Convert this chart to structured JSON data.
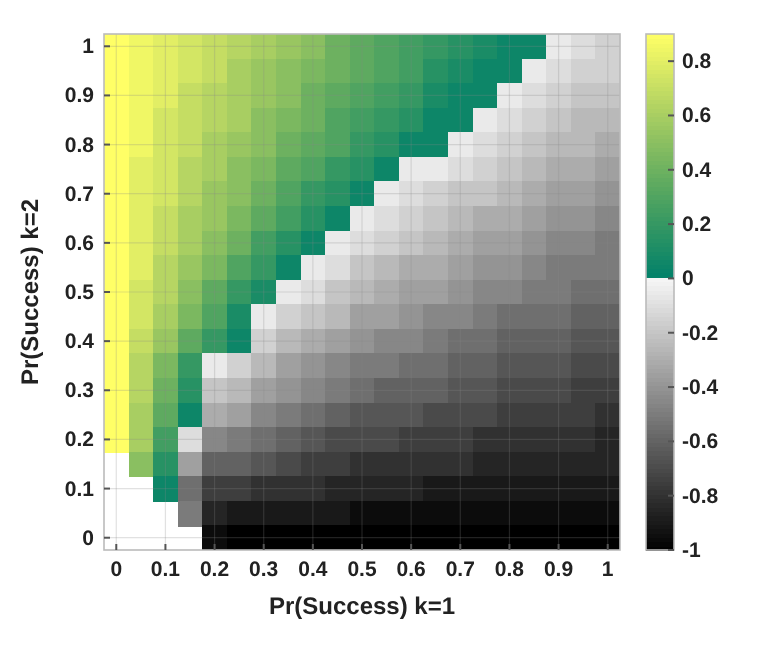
{
  "chart_data": {
    "type": "heatmap",
    "xlabel": "Pr(Success) k=1",
    "ylabel": "Pr(Success) k=2",
    "categories": [
      "0",
      null,
      "0.1",
      null,
      "0.2",
      null,
      "0.3",
      null,
      "0.4",
      null,
      "0.5",
      null,
      "0.6",
      null,
      "0.7",
      null,
      "0.8",
      null,
      "0.9",
      null,
      "1"
    ],
    "y_categories": [
      "1",
      null,
      "0.9",
      null,
      "0.8",
      null,
      "0.7",
      null,
      "0.6",
      null,
      "0.5",
      null,
      "0.4",
      null,
      "0.3",
      null,
      "0.2",
      null,
      "0.1",
      null,
      "0"
    ],
    "grid": true,
    "clim": [
      -1,
      0.9
    ],
    "cticks": [
      -1,
      -0.8,
      -0.6,
      -0.4,
      -0.2,
      0,
      0.2,
      0.4,
      0.6,
      0.8
    ],
    "cells": [
      [
        0.9,
        0.85,
        0.8,
        0.75,
        0.7,
        0.65,
        0.6,
        0.55,
        0.5,
        0.4,
        0.35,
        0.3,
        0.25,
        0.2,
        0.15,
        0.1,
        0.05,
        0.05,
        -0.05,
        -0.1,
        -0.15
      ],
      [
        0.9,
        0.85,
        0.8,
        0.75,
        0.7,
        0.6,
        0.55,
        0.5,
        0.45,
        0.4,
        0.35,
        0.3,
        0.25,
        0.15,
        0.1,
        0.05,
        0.05,
        -0.05,
        -0.1,
        -0.15,
        -0.15
      ],
      [
        0.9,
        0.85,
        0.8,
        0.7,
        0.65,
        0.6,
        0.55,
        0.5,
        0.4,
        0.35,
        0.3,
        0.25,
        0.2,
        0.1,
        0.05,
        0.05,
        -0.05,
        -0.1,
        -0.15,
        -0.2,
        -0.2
      ],
      [
        0.9,
        0.85,
        0.75,
        0.7,
        0.65,
        0.6,
        0.5,
        0.45,
        0.4,
        0.3,
        0.25,
        0.2,
        0.15,
        0.05,
        0.05,
        -0.05,
        -0.1,
        -0.15,
        -0.2,
        -0.25,
        -0.25
      ],
      [
        0.9,
        0.85,
        0.75,
        0.7,
        0.6,
        0.55,
        0.5,
        0.4,
        0.35,
        0.3,
        0.2,
        0.15,
        0.05,
        0.05,
        -0.05,
        -0.1,
        -0.15,
        -0.2,
        -0.25,
        -0.25,
        -0.3
      ],
      [
        0.9,
        0.8,
        0.75,
        0.65,
        0.6,
        0.5,
        0.45,
        0.35,
        0.3,
        0.2,
        0.15,
        0.05,
        -0.05,
        -0.05,
        -0.1,
        -0.15,
        -0.2,
        -0.25,
        -0.3,
        -0.3,
        -0.35
      ],
      [
        0.9,
        0.8,
        0.75,
        0.65,
        0.55,
        0.5,
        0.4,
        0.3,
        0.2,
        0.15,
        0.05,
        -0.05,
        -0.1,
        -0.15,
        -0.2,
        -0.2,
        -0.25,
        -0.3,
        -0.35,
        -0.35,
        -0.4
      ],
      [
        0.9,
        0.8,
        0.7,
        0.6,
        0.55,
        0.45,
        0.35,
        0.25,
        0.15,
        0.05,
        -0.05,
        -0.1,
        -0.15,
        -0.2,
        -0.25,
        -0.3,
        -0.3,
        -0.35,
        -0.4,
        -0.4,
        -0.45
      ],
      [
        0.9,
        0.8,
        0.7,
        0.6,
        0.5,
        0.4,
        0.25,
        0.15,
        0.05,
        -0.05,
        -0.1,
        -0.15,
        -0.2,
        -0.25,
        -0.3,
        -0.35,
        -0.35,
        -0.4,
        -0.45,
        -0.45,
        -0.5
      ],
      [
        0.9,
        0.8,
        0.65,
        0.55,
        0.45,
        0.3,
        0.2,
        0.05,
        -0.05,
        -0.1,
        -0.2,
        -0.25,
        -0.3,
        -0.3,
        -0.35,
        -0.4,
        -0.4,
        -0.45,
        -0.5,
        -0.5,
        -0.5
      ],
      [
        0.9,
        0.75,
        0.65,
        0.5,
        0.35,
        0.2,
        0.1,
        -0.05,
        -0.1,
        -0.2,
        -0.25,
        -0.3,
        -0.35,
        -0.35,
        -0.4,
        -0.45,
        -0.45,
        -0.5,
        -0.5,
        -0.55,
        -0.55
      ],
      [
        0.9,
        0.75,
        0.6,
        0.45,
        0.3,
        0.1,
        -0.05,
        -0.15,
        -0.2,
        -0.25,
        -0.35,
        -0.35,
        -0.4,
        -0.45,
        -0.45,
        -0.5,
        -0.55,
        -0.55,
        -0.55,
        -0.6,
        -0.6
      ],
      [
        0.9,
        0.7,
        0.55,
        0.35,
        0.2,
        0.05,
        -0.15,
        -0.25,
        -0.3,
        -0.35,
        -0.4,
        -0.45,
        -0.45,
        -0.5,
        -0.55,
        -0.55,
        -0.6,
        -0.6,
        -0.6,
        -0.65,
        -0.65
      ],
      [
        0.9,
        0.65,
        0.45,
        0.2,
        -0.05,
        -0.15,
        -0.25,
        -0.35,
        -0.4,
        -0.45,
        -0.5,
        -0.5,
        -0.55,
        -0.55,
        -0.6,
        -0.6,
        -0.65,
        -0.65,
        -0.65,
        -0.7,
        -0.7
      ],
      [
        0.9,
        0.65,
        0.4,
        0.15,
        -0.2,
        -0.25,
        -0.35,
        -0.4,
        -0.45,
        -0.5,
        -0.55,
        -0.6,
        -0.6,
        -0.6,
        -0.65,
        -0.65,
        -0.7,
        -0.7,
        -0.7,
        -0.75,
        -0.75
      ],
      [
        0.9,
        0.6,
        0.35,
        0.05,
        -0.3,
        -0.35,
        -0.45,
        -0.5,
        -0.55,
        -0.6,
        -0.65,
        -0.65,
        -0.65,
        -0.7,
        -0.7,
        -0.7,
        -0.75,
        -0.75,
        -0.75,
        -0.75,
        -0.8
      ],
      [
        0.9,
        0.6,
        0.25,
        -0.1,
        -0.45,
        -0.5,
        -0.55,
        -0.6,
        -0.65,
        -0.7,
        -0.7,
        -0.7,
        -0.75,
        -0.75,
        -0.75,
        -0.8,
        -0.8,
        -0.8,
        -0.8,
        -0.8,
        -0.85
      ],
      [
        null,
        0.5,
        0.15,
        -0.35,
        -0.6,
        -0.6,
        -0.65,
        -0.7,
        -0.75,
        -0.75,
        -0.8,
        -0.8,
        -0.8,
        -0.8,
        -0.8,
        -0.85,
        -0.85,
        -0.85,
        -0.85,
        -0.85,
        -0.85
      ],
      [
        null,
        null,
        0.05,
        -0.55,
        -0.75,
        -0.75,
        -0.8,
        -0.8,
        -0.8,
        -0.85,
        -0.85,
        -0.85,
        -0.85,
        -0.9,
        -0.9,
        -0.9,
        -0.9,
        -0.9,
        -0.9,
        -0.9,
        -0.9
      ],
      [
        null,
        null,
        null,
        -0.5,
        -0.85,
        -0.9,
        -0.9,
        -0.9,
        -0.9,
        -0.9,
        -0.95,
        -0.95,
        -0.95,
        -0.95,
        -0.95,
        -0.95,
        -0.95,
        -0.95,
        -0.95,
        -0.95,
        -0.95
      ],
      [
        null,
        null,
        null,
        null,
        -0.95,
        -1,
        -1,
        -1,
        -1,
        -1,
        -1,
        -1,
        -1,
        -1,
        -1,
        -1,
        -1,
        -1,
        -1,
        -1,
        -1
      ]
    ]
  }
}
